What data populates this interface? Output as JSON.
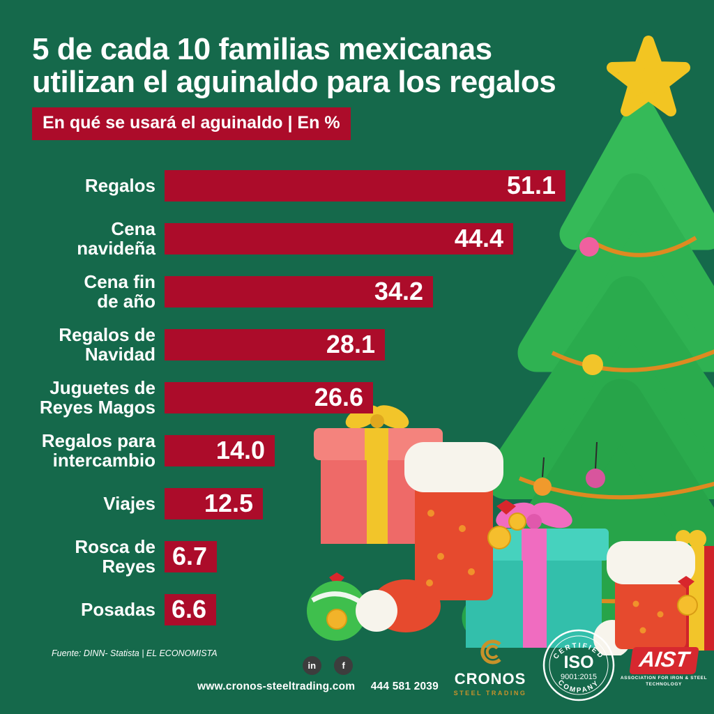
{
  "colors": {
    "background": "#15694B",
    "accent_red": "#AC0C2A",
    "text": "#FFFFFF",
    "gold": "#C8922A",
    "star_yellow": "#F2C522",
    "tree_green": "#2FB254"
  },
  "header": {
    "title_line1": "5 de cada 10 familias mexicanas",
    "title_line2": "utilizan el aguinaldo para los regalos",
    "subtitle_badge": "En qué se usará el aguinaldo | En %"
  },
  "chart_data": {
    "type": "bar",
    "orientation": "horizontal",
    "title": "En qué se usará el aguinaldo",
    "unit": "%",
    "categories": [
      "Regalos",
      "Cena\nnavideña",
      "Cena fin\nde año",
      "Regalos de\nNavidad",
      "Juguetes de\nReyes Magos",
      "Regalos para\nintercambio",
      "Viajes",
      "Rosca de\nReyes",
      "Posadas"
    ],
    "values": [
      51.1,
      44.4,
      34.2,
      28.1,
      26.6,
      14.0,
      12.5,
      6.7,
      6.6
    ],
    "value_labels": [
      "51.1",
      "44.4",
      "34.2",
      "28.1",
      "26.6",
      "14.0",
      "12.5",
      "6.7",
      "6.6"
    ],
    "xlim": [
      0,
      55
    ],
    "bar_color": "#AC0C2A",
    "grid": false,
    "legend": false
  },
  "source_note": "Fuente: DINN- Statista | EL ECONOMISTA",
  "footer": {
    "website": "www.cronos-steeltrading.com",
    "phone": "444 581 2039"
  },
  "icons": {
    "linkedin": "in",
    "facebook": "f"
  },
  "logos": {
    "cronos": {
      "name": "CRONOS",
      "tagline": "STEEL TRADING"
    },
    "iso": {
      "arc_top": "CERTIFIED",
      "name": "ISO",
      "number": "9001:2015",
      "arc_bottom": "COMPANY"
    },
    "aist": {
      "name": "AIST",
      "caption_line1": "ASSOCIATION FOR IRON & STEEL",
      "caption_line2": "TECHNOLOGY"
    }
  }
}
